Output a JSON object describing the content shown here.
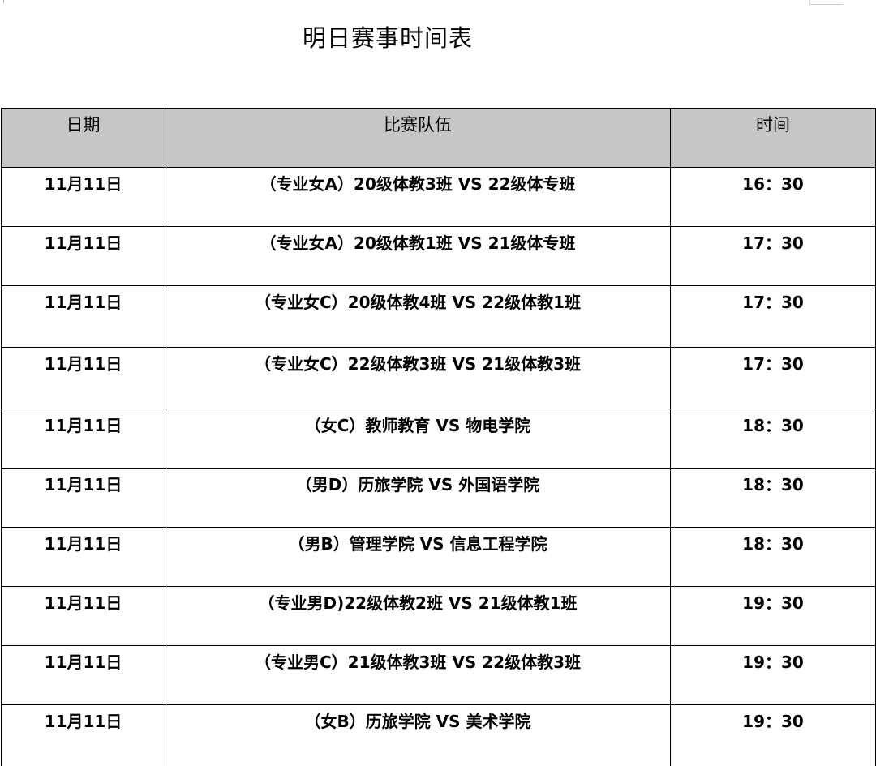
{
  "title": "明日赛事时间表",
  "table": {
    "headers": [
      "日期",
      "比赛队伍",
      "时间"
    ],
    "rows": [
      {
        "date": "11月11日",
        "match": "（专业女A）20级体教3班  VS 22级体专班",
        "time": "16：30"
      },
      {
        "date": "11月11日",
        "match": "（专业女A）20级体教1班  VS 21级体专班",
        "time": "17：30"
      },
      {
        "date": "11月11日",
        "match": "（专业女C）20级体教4班  VS 22级体教1班",
        "time": "17：30"
      },
      {
        "date": "11月11日",
        "match": "（专业女C）22级体教3班  VS 21级体教3班",
        "time": "17：30"
      },
      {
        "date": "11月11日",
        "match": "（女C）教师教育 VS  物电学院",
        "time": "18：30"
      },
      {
        "date": "11月11日",
        "match": "（男D）历旅学院 VS  外国语学院",
        "time": "18：30"
      },
      {
        "date": "11月11日",
        "match": "（男B）管理学院 VS  信息工程学院",
        "time": "18：30"
      },
      {
        "date": "11月11日",
        "match": "（专业男D)22级体教2班  VS 21级体教1班",
        "time": "19：30"
      },
      {
        "date": "11月11日",
        "match": "（专业男C）21级体教3班  VS 22级体教3班",
        "time": "19：30"
      },
      {
        "date": "11月11日",
        "match": "（女B）历旅学院  VS  美术学院",
        "time": "19：30"
      }
    ]
  }
}
